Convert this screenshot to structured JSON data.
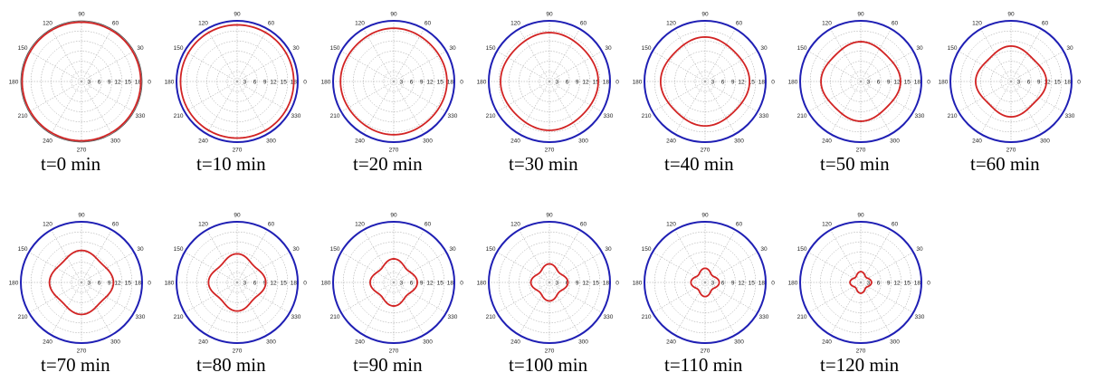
{
  "colors": {
    "outer_boundary": "#1f1fb4",
    "inner_front": "#d22323",
    "grid": "#9a9a9a",
    "frame": "#444444"
  },
  "chart_data": {
    "type": "polar",
    "grid": true,
    "angle_ticks": [
      "0",
      "30",
      "60",
      "90",
      "120",
      "150",
      "180",
      "210",
      "240",
      "270",
      "300",
      "330"
    ],
    "radius_ticks": [
      "3",
      "6",
      "9",
      "12",
      "15",
      "18"
    ],
    "rlim": [
      0,
      18
    ],
    "panels": [
      {
        "caption": "t=0 min",
        "outer_radius": 18.0,
        "inner_radius": 17.6,
        "squareness": 0.0
      },
      {
        "caption": "t=10 min",
        "outer_radius": 18.0,
        "inner_radius": 16.8,
        "squareness": 0.0
      },
      {
        "caption": "t=20 min",
        "outer_radius": 18.0,
        "inner_radius": 15.8,
        "squareness": 0.02
      },
      {
        "caption": "t=30 min",
        "outer_radius": 18.0,
        "inner_radius": 14.5,
        "squareness": 0.04
      },
      {
        "caption": "t=40 min",
        "outer_radius": 18.0,
        "inner_radius": 13.2,
        "squareness": 0.06
      },
      {
        "caption": "t=50 min",
        "outer_radius": 18.0,
        "inner_radius": 11.8,
        "squareness": 0.08
      },
      {
        "caption": "t=60 min",
        "outer_radius": 18.0,
        "inner_radius": 10.5,
        "squareness": 0.11
      },
      {
        "caption": "t=70 min",
        "outer_radius": 18.0,
        "inner_radius": 9.5,
        "squareness": 0.14
      },
      {
        "caption": "t=80 min",
        "outer_radius": 18.0,
        "inner_radius": 8.5,
        "squareness": 0.18
      },
      {
        "caption": "t=90 min",
        "outer_radius": 18.0,
        "inner_radius": 7.0,
        "squareness": 0.22
      },
      {
        "caption": "t=100 min",
        "outer_radius": 18.0,
        "inner_radius": 5.5,
        "squareness": 0.26
      },
      {
        "caption": "t=110 min",
        "outer_radius": 18.0,
        "inner_radius": 4.2,
        "squareness": 0.3
      },
      {
        "caption": "t=120 min",
        "outer_radius": 18.0,
        "inner_radius": 3.2,
        "squareness": 0.32
      }
    ]
  }
}
